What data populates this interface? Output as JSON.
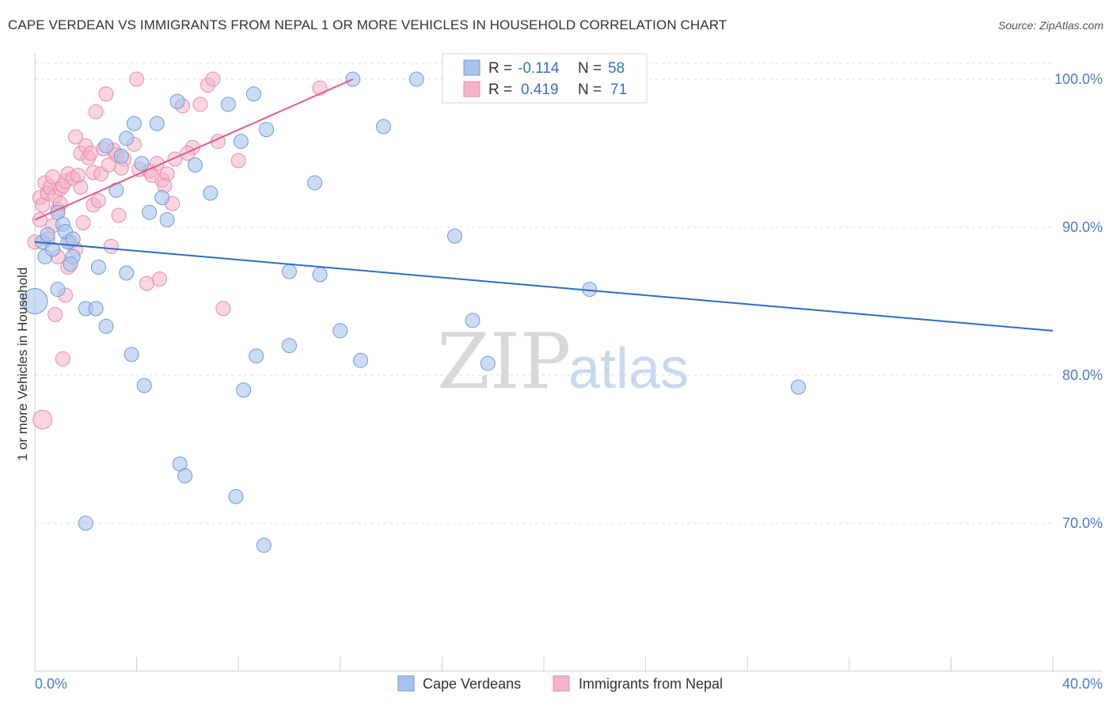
{
  "title": "CAPE VERDEAN VS IMMIGRANTS FROM NEPAL 1 OR MORE VEHICLES IN HOUSEHOLD CORRELATION CHART",
  "source": "Source: ZipAtlas.com",
  "watermark": {
    "zip": "ZIP",
    "atlas": "atlas"
  },
  "colors": {
    "blue_fill": "#a9c4ec",
    "blue_stroke": "#6f9ad8",
    "blue_line": "#2e6cc9",
    "pink_fill": "#f4b3c8",
    "pink_stroke": "#e88aa8",
    "pink_line": "#e05b8a",
    "grid": "#e2e2e2",
    "axis_text": "#4a7cc7"
  },
  "legend": {
    "r_label": "R =",
    "n_label": "N =",
    "series1": {
      "r": "-0.114",
      "n": "58"
    },
    "series2": {
      "r": "0.419",
      "n": "71"
    }
  },
  "chart_data": {
    "type": "scatter",
    "title": "CAPE VERDEAN VS IMMIGRANTS FROM NEPAL 1 OR MORE VEHICLES IN HOUSEHOLD CORRELATION CHART",
    "xlabel": "",
    "ylabel": "1 or more Vehicles in Household",
    "xlim": [
      0,
      40
    ],
    "ylim": [
      60,
      101.5
    ],
    "x_tick_labels": [
      "0.0%",
      "40.0%"
    ],
    "y_ticks": [
      70,
      80,
      90,
      100
    ],
    "y_tick_labels": [
      "70.0%",
      "80.0%",
      "90.0%",
      "100.0%"
    ],
    "series": [
      {
        "name": "Cape Verdeans",
        "r": -0.114,
        "n": 58,
        "trend": {
          "x": [
            0,
            40
          ],
          "y": [
            89.0,
            83.0
          ]
        },
        "points": [
          [
            0.0,
            85.0
          ],
          [
            0.3,
            89.0
          ],
          [
            0.5,
            89.5
          ],
          [
            0.4,
            88.0
          ],
          [
            0.7,
            88.5
          ],
          [
            0.9,
            91.0
          ],
          [
            1.1,
            90.2
          ],
          [
            1.3,
            89.0
          ],
          [
            1.5,
            88.0
          ],
          [
            1.4,
            87.5
          ],
          [
            0.9,
            85.8
          ],
          [
            2.0,
            84.5
          ],
          [
            2.4,
            84.5
          ],
          [
            1.2,
            89.7
          ],
          [
            2.8,
            83.3
          ],
          [
            3.2,
            92.5
          ],
          [
            3.4,
            94.8
          ],
          [
            3.6,
            96.0
          ],
          [
            3.9,
            97.0
          ],
          [
            4.2,
            94.3
          ],
          [
            4.5,
            91.0
          ],
          [
            5.0,
            92.0
          ],
          [
            5.6,
            98.5
          ],
          [
            5.2,
            90.5
          ],
          [
            4.8,
            97.0
          ],
          [
            6.3,
            94.2
          ],
          [
            6.9,
            92.3
          ],
          [
            7.6,
            98.3
          ],
          [
            8.1,
            95.8
          ],
          [
            8.6,
            99.0
          ],
          [
            9.1,
            96.6
          ],
          [
            10.0,
            87.0
          ],
          [
            11.0,
            93.0
          ],
          [
            11.2,
            86.8
          ],
          [
            12.0,
            83.0
          ],
          [
            10.0,
            82.0
          ],
          [
            12.8,
            81.0
          ],
          [
            13.7,
            96.8
          ],
          [
            12.5,
            100.0
          ],
          [
            15.0,
            100.0
          ],
          [
            16.5,
            89.4
          ],
          [
            17.2,
            83.7
          ],
          [
            17.8,
            80.8
          ],
          [
            21.8,
            85.8
          ],
          [
            30.0,
            79.2
          ],
          [
            8.7,
            81.3
          ],
          [
            8.2,
            79.0
          ],
          [
            3.8,
            81.4
          ],
          [
            4.3,
            79.3
          ],
          [
            5.7,
            74.0
          ],
          [
            5.9,
            73.2
          ],
          [
            7.9,
            71.8
          ],
          [
            9.0,
            68.5
          ],
          [
            2.0,
            70.0
          ],
          [
            1.5,
            89.2
          ],
          [
            2.5,
            87.3
          ],
          [
            3.6,
            86.9
          ],
          [
            2.8,
            95.5
          ]
        ]
      },
      {
        "name": "Immigrants from Nepal",
        "r": 0.419,
        "n": 71,
        "trend": {
          "x": [
            0,
            12.5
          ],
          "y": [
            90.5,
            100.0
          ]
        },
        "points": [
          [
            0.0,
            89.0
          ],
          [
            0.2,
            92.0
          ],
          [
            0.3,
            91.5
          ],
          [
            0.4,
            93.0
          ],
          [
            0.5,
            92.3
          ],
          [
            0.6,
            92.7
          ],
          [
            0.7,
            93.4
          ],
          [
            0.8,
            92.1
          ],
          [
            0.9,
            91.2
          ],
          [
            1.0,
            92.6
          ],
          [
            1.1,
            92.8
          ],
          [
            1.2,
            93.1
          ],
          [
            1.3,
            93.6
          ],
          [
            1.5,
            93.3
          ],
          [
            1.6,
            96.1
          ],
          [
            1.8,
            95.0
          ],
          [
            2.0,
            95.5
          ],
          [
            2.1,
            94.7
          ],
          [
            2.3,
            93.7
          ],
          [
            2.4,
            97.8
          ],
          [
            2.6,
            93.6
          ],
          [
            2.7,
            95.3
          ],
          [
            2.8,
            99.0
          ],
          [
            3.2,
            94.9
          ],
          [
            3.5,
            94.6
          ],
          [
            3.9,
            95.6
          ],
          [
            4.1,
            93.9
          ],
          [
            4.5,
            93.8
          ],
          [
            4.8,
            94.3
          ],
          [
            5.0,
            93.2
          ],
          [
            5.2,
            93.6
          ],
          [
            5.5,
            94.6
          ],
          [
            5.8,
            98.2
          ],
          [
            6.2,
            95.4
          ],
          [
            6.5,
            98.3
          ],
          [
            6.8,
            99.6
          ],
          [
            7.0,
            100.0
          ],
          [
            7.2,
            95.8
          ],
          [
            8.0,
            94.5
          ],
          [
            11.2,
            99.4
          ],
          [
            4.0,
            100.0
          ],
          [
            0.3,
            77.0
          ],
          [
            1.1,
            81.1
          ],
          [
            0.8,
            84.1
          ],
          [
            1.2,
            85.4
          ],
          [
            4.4,
            86.2
          ],
          [
            4.9,
            86.5
          ],
          [
            7.4,
            84.5
          ],
          [
            1.3,
            87.3
          ],
          [
            0.9,
            88.0
          ],
          [
            1.4,
            89.0
          ],
          [
            1.6,
            88.5
          ],
          [
            1.9,
            90.3
          ],
          [
            2.3,
            91.5
          ],
          [
            2.5,
            91.8
          ],
          [
            3.0,
            88.7
          ],
          [
            3.3,
            90.8
          ],
          [
            5.4,
            91.6
          ],
          [
            0.5,
            89.2
          ],
          [
            0.7,
            90.1
          ],
          [
            1.0,
            91.6
          ],
          [
            1.8,
            92.7
          ],
          [
            2.2,
            95.0
          ],
          [
            3.1,
            95.2
          ],
          [
            3.4,
            94.0
          ],
          [
            4.6,
            93.5
          ],
          [
            5.1,
            92.8
          ],
          [
            6.0,
            95.0
          ],
          [
            0.2,
            90.5
          ],
          [
            2.9,
            94.2
          ],
          [
            1.7,
            93.5
          ]
        ]
      }
    ]
  }
}
